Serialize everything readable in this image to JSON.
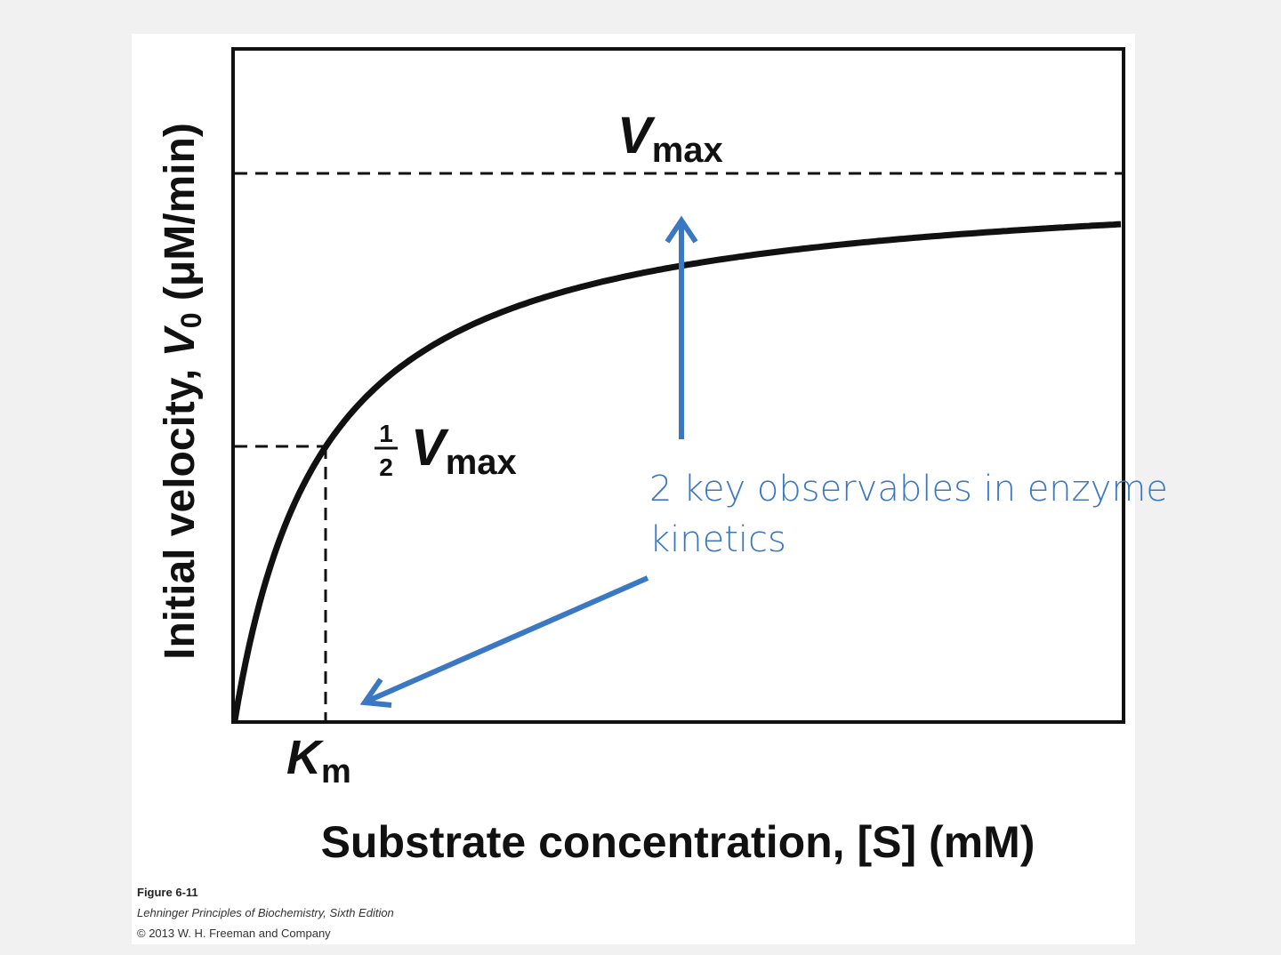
{
  "labels": {
    "vmax": {
      "symbol": "V",
      "subscript": "max"
    },
    "half_vmax": {
      "numerator": "1",
      "denominator": "2",
      "symbol": "V",
      "subscript": "max"
    },
    "km": {
      "symbol": "K",
      "subscript": "m"
    }
  },
  "y_axis_label": {
    "before": "Initial velocity, ",
    "symbol": "V",
    "subscript": "0",
    "after": " (μM/min)"
  },
  "x_axis_label": "Substrate concentration, [S] (mM)",
  "annotation": [
    "2 key observables in enzyme",
    "kinetics"
  ],
  "caption": [
    "Figure 6-11",
    "Lehninger Principles of Biochemistry, Sixth Edition",
    "© 2013 W. H. Freeman and Company"
  ]
}
